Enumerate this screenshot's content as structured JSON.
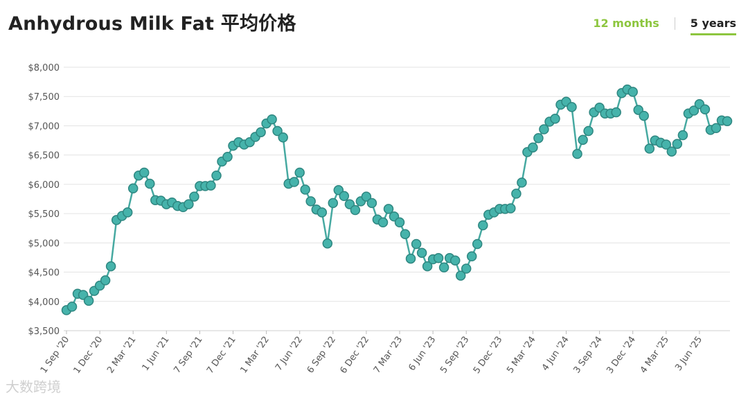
{
  "header": {
    "title": "Anhydrous Milk Fat 平均价格",
    "tabs": [
      {
        "label": "12 months",
        "active": false
      },
      {
        "label": "5 years",
        "active": true
      }
    ]
  },
  "watermark": "大数跨境",
  "colors": {
    "line": "#46a9a1",
    "point_fill": "#46b3ab",
    "point_stroke": "#2e8680",
    "active_tab": "#8dc63f",
    "grid": "#e3e3e3"
  },
  "chart_data": {
    "type": "line",
    "title": "Anhydrous Milk Fat 平均价格",
    "xlabel": "",
    "ylabel": "",
    "ylim": [
      3500,
      8000
    ],
    "y_ticks": [
      "$8,000",
      "$7,500",
      "$7,000",
      "$6,500",
      "$6,000",
      "$5,500",
      "$5,000",
      "$4,500",
      "$4,000",
      "$3,500"
    ],
    "y_tick_values": [
      8000,
      7500,
      7000,
      6500,
      6000,
      5500,
      5000,
      4500,
      4000,
      3500
    ],
    "x_ticks": [
      {
        "label": "1 Sep '20",
        "index": 0
      },
      {
        "label": "1 Dec '20",
        "index": 6
      },
      {
        "label": "2 Mar '21",
        "index": 12
      },
      {
        "label": "1 Jun '21",
        "index": 18
      },
      {
        "label": "7 Sep '21",
        "index": 24
      },
      {
        "label": "7 Dec '21",
        "index": 30
      },
      {
        "label": "1 Mar '22",
        "index": 36
      },
      {
        "label": "7 Jun '22",
        "index": 42
      },
      {
        "label": "6 Sep '22",
        "index": 48
      },
      {
        "label": "6 Dec '22",
        "index": 54
      },
      {
        "label": "7 Mar '23",
        "index": 60
      },
      {
        "label": "6 Jun '23",
        "index": 66
      },
      {
        "label": "5 Sep '23",
        "index": 72
      },
      {
        "label": "5 Dec '23",
        "index": 78
      },
      {
        "label": "5 Mar '24",
        "index": 84
      },
      {
        "label": "4 Jun '24",
        "index": 90
      },
      {
        "label": "3 Sep '24",
        "index": 96
      },
      {
        "label": "3 Dec '24",
        "index": 102
      },
      {
        "label": "4 Mar '25",
        "index": 108
      },
      {
        "label": "3 Jun '25",
        "index": 114
      }
    ],
    "series": [
      {
        "values": [
          3850,
          3910,
          4130,
          4110,
          4010,
          4180,
          4270,
          4360,
          4600,
          5390,
          5460,
          5520,
          5930,
          6150,
          6200,
          6010,
          5730,
          5720,
          5660,
          5690,
          5630,
          5610,
          5660,
          5790,
          5970,
          5970,
          5980,
          6150,
          6390,
          6470,
          6660,
          6720,
          6680,
          6720,
          6810,
          6890,
          7040,
          7110,
          6910,
          6800,
          6010,
          6040,
          6200,
          5910,
          5710,
          5570,
          5520,
          4990,
          5680,
          5900,
          5800,
          5660,
          5560,
          5710,
          5790,
          5680,
          5400,
          5350,
          5580,
          5450,
          5350,
          5150,
          4730,
          4980,
          4830,
          4600,
          4720,
          4740,
          4580,
          4740,
          4700,
          4440,
          4560,
          4770,
          4980,
          5300,
          5480,
          5520,
          5580,
          5580,
          5590,
          5840,
          6030,
          6550,
          6630,
          6790,
          6940,
          7070,
          7120,
          7360,
          7410,
          7320,
          6520,
          6760,
          6910,
          7230,
          7310,
          7210,
          7210,
          7230,
          7560,
          7620,
          7580,
          7270,
          7170,
          6610,
          6750,
          6710,
          6680,
          6560,
          6690,
          6840,
          7210,
          7260,
          7370,
          7280,
          6930,
          6960,
          7090,
          7080
        ]
      }
    ]
  }
}
